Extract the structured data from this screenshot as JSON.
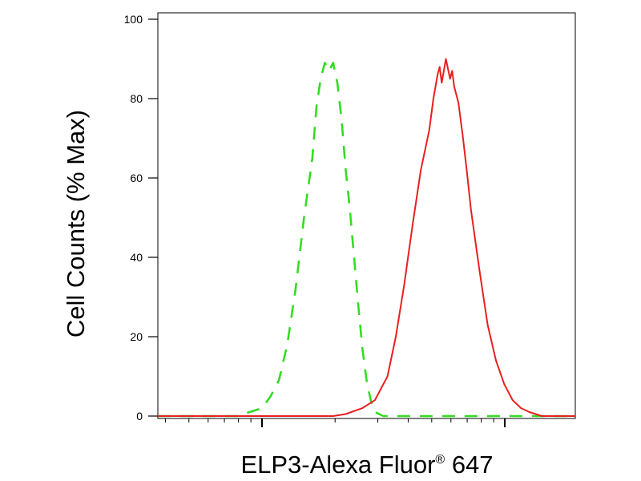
{
  "chart_data": {
    "type": "line",
    "xlabel": "ELP3-Alexa Fluor",
    "xlabel_superscript": "®",
    "xlabel_suffix": " 647",
    "ylabel": "Cell Counts (% Max)",
    "x_scale": "log",
    "x_labeled_ticks": [],
    "ylim": [
      0,
      100
    ],
    "y_ticks": [
      "0",
      "20",
      "40",
      "60",
      "80",
      "100"
    ],
    "grid": false,
    "legend": "none",
    "series": [
      {
        "color": "#33dd22",
        "dash": "dashed",
        "points": [
          [
            0,
            0
          ],
          [
            0.1,
            0
          ],
          [
            0.19,
            0
          ],
          [
            0.22,
            1
          ],
          [
            0.25,
            2
          ],
          [
            0.27,
            5
          ],
          [
            0.29,
            9
          ],
          [
            0.31,
            18
          ],
          [
            0.33,
            32
          ],
          [
            0.35,
            50
          ],
          [
            0.37,
            65
          ],
          [
            0.38,
            78
          ],
          [
            0.39,
            85
          ],
          [
            0.4,
            89
          ],
          [
            0.41,
            87
          ],
          [
            0.42,
            89
          ],
          [
            0.43,
            84
          ],
          [
            0.44,
            75
          ],
          [
            0.45,
            62
          ],
          [
            0.46,
            52
          ],
          [
            0.47,
            40
          ],
          [
            0.48,
            28
          ],
          [
            0.49,
            17
          ],
          [
            0.5,
            9
          ],
          [
            0.51,
            4
          ],
          [
            0.52,
            1
          ],
          [
            0.54,
            0
          ],
          [
            1,
            0
          ]
        ]
      },
      {
        "color": "#e82020",
        "dash": "solid",
        "points": [
          [
            0,
            0
          ],
          [
            0.42,
            0
          ],
          [
            0.45,
            0.5
          ],
          [
            0.49,
            2
          ],
          [
            0.52,
            4
          ],
          [
            0.55,
            10
          ],
          [
            0.57,
            20
          ],
          [
            0.59,
            33
          ],
          [
            0.61,
            48
          ],
          [
            0.63,
            62
          ],
          [
            0.65,
            72
          ],
          [
            0.66,
            80
          ],
          [
            0.67,
            86
          ],
          [
            0.675,
            88
          ],
          [
            0.68,
            84
          ],
          [
            0.685,
            87
          ],
          [
            0.69,
            90
          ],
          [
            0.7,
            85
          ],
          [
            0.705,
            87
          ],
          [
            0.71,
            83
          ],
          [
            0.72,
            79
          ],
          [
            0.73,
            71
          ],
          [
            0.74,
            62
          ],
          [
            0.75,
            52
          ],
          [
            0.77,
            37
          ],
          [
            0.79,
            23
          ],
          [
            0.81,
            14
          ],
          [
            0.83,
            8
          ],
          [
            0.85,
            4
          ],
          [
            0.87,
            2
          ],
          [
            0.89,
            1
          ],
          [
            0.92,
            0
          ],
          [
            1,
            0
          ]
        ]
      }
    ]
  }
}
